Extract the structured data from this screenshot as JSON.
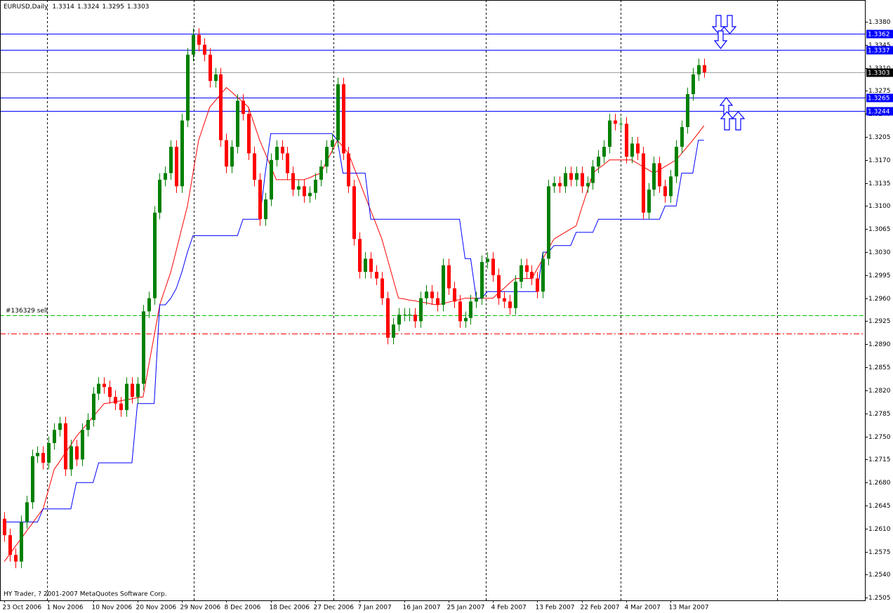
{
  "chart_data": {
    "type": "candlestick",
    "title": "EURUSD,Daily",
    "footer": "HY Trader, ? 2001-2007 MetaQuotes Software Corp.",
    "categories": [
      "23 Oct 2006",
      null,
      null,
      null,
      null,
      null,
      null,
      null,
      "1 Nov 2006",
      null,
      null,
      null,
      null,
      null,
      null,
      null,
      "10 Nov 2006",
      null,
      null,
      null,
      null,
      null,
      null,
      null,
      "20 Nov 2006",
      null,
      null,
      null,
      null,
      null,
      null,
      null,
      "29 Nov 2006",
      null,
      null,
      null,
      null,
      null,
      null,
      null,
      "8 Dec 2006",
      null,
      null,
      null,
      null,
      null,
      null,
      null,
      "18 Dec 2006",
      null,
      null,
      null,
      null,
      null,
      null,
      null,
      "27 Dec 2006",
      null,
      null,
      null,
      null,
      null,
      null,
      null,
      "7 Jan 2007",
      null,
      null,
      null,
      null,
      null,
      null,
      null,
      "16 Jan 2007",
      null,
      null,
      null,
      null,
      null,
      null,
      null,
      "25 Jan 2007",
      null,
      null,
      null,
      null,
      null,
      null,
      null,
      "4 Feb 2007",
      null,
      null,
      null,
      null,
      null,
      null,
      null,
      "13 Feb 2007",
      null,
      null,
      null,
      null,
      null,
      null,
      null,
      "22 Feb 2007",
      null,
      null,
      null,
      null,
      null,
      null,
      null,
      "4 Mar 2007",
      null,
      null,
      null,
      null,
      null,
      null,
      null,
      "13 Mar 2007",
      null,
      null,
      null,
      null,
      null,
      null
    ],
    "open": [
      1.2625,
      1.26,
      1.257,
      1.256,
      1.262,
      1.265,
      1.272,
      1.2725,
      1.271,
      1.274,
      1.276,
      1.277,
      1.27,
      1.2735,
      1.2715,
      1.276,
      1.2775,
      1.2815,
      1.283,
      1.2825,
      1.281,
      1.28,
      1.279,
      1.283,
      1.281,
      1.283,
      1.294,
      1.296,
      1.309,
      1.314,
      1.315,
      1.319,
      1.313,
      1.323,
      1.333,
      1.336,
      1.3345,
      1.333,
      1.329,
      1.33,
      1.32,
      1.316,
      1.319,
      1.326,
      1.324,
      1.318,
      1.314,
      1.308,
      1.311,
      1.317,
      1.319,
      1.318,
      1.315,
      1.3125,
      1.313,
      1.3115,
      1.312,
      1.314,
      1.316,
      1.319,
      1.32,
      1.3285,
      1.318,
      1.313,
      1.305,
      1.3,
      1.302,
      1.3,
      1.299,
      1.296,
      1.29,
      1.292,
      1.2935,
      1.2935,
      1.2935,
      1.2925,
      1.296,
      1.297,
      1.296,
      1.295,
      1.301,
      1.2975,
      1.2955,
      1.2925,
      1.293,
      1.2955,
      1.296,
      1.3015,
      1.302,
      1.2995,
      1.296,
      1.2955,
      1.2945,
      1.2985,
      1.301,
      1.3,
      1.299,
      1.297,
      1.302,
      1.313,
      1.3135,
      1.313,
      1.315,
      1.314,
      1.315,
      1.313,
      1.3135,
      1.316,
      1.3175,
      1.319,
      1.323,
      1.3225,
      1.3225,
      1.3175,
      1.3195,
      1.318,
      1.309,
      1.3125,
      1.3165,
      1.313,
      1.3115,
      1.3145,
      1.319,
      1.322,
      1.327,
      1.33,
      1.3314
    ],
    "high": [
      1.2635,
      1.261,
      1.258,
      1.263,
      1.266,
      1.273,
      1.2735,
      1.2735,
      1.275,
      1.277,
      1.278,
      1.278,
      1.2745,
      1.2745,
      1.277,
      1.2785,
      1.2825,
      1.284,
      1.284,
      1.2835,
      1.282,
      1.281,
      1.284,
      1.284,
      1.284,
      1.295,
      1.297,
      1.31,
      1.315,
      1.316,
      1.32,
      1.32,
      1.324,
      1.334,
      1.337,
      1.337,
      1.3355,
      1.334,
      1.331,
      1.331,
      1.321,
      1.32,
      1.327,
      1.327,
      1.325,
      1.319,
      1.315,
      1.312,
      1.318,
      1.32,
      1.32,
      1.319,
      1.316,
      1.314,
      1.314,
      1.313,
      1.315,
      1.317,
      1.32,
      1.321,
      1.3295,
      1.3295,
      1.319,
      1.314,
      1.306,
      1.303,
      1.303,
      1.301,
      1.3,
      1.297,
      1.293,
      1.2945,
      1.2945,
      1.2945,
      1.2945,
      1.297,
      1.298,
      1.298,
      1.297,
      1.302,
      1.302,
      1.2985,
      1.2965,
      1.294,
      1.2965,
      1.297,
      1.3025,
      1.303,
      1.303,
      1.3005,
      1.297,
      1.2965,
      1.2995,
      1.302,
      1.302,
      1.301,
      1.3,
      1.303,
      1.314,
      1.3145,
      1.3145,
      1.316,
      1.316,
      1.316,
      1.316,
      1.3145,
      1.317,
      1.3185,
      1.32,
      1.324,
      1.324,
      1.3235,
      1.3235,
      1.3205,
      1.3205,
      1.319,
      1.3135,
      1.3175,
      1.3175,
      1.314,
      1.3155,
      1.32,
      1.323,
      1.328,
      1.331,
      1.3324,
      1.3324
    ],
    "low": [
      1.259,
      1.256,
      1.255,
      1.255,
      1.261,
      1.264,
      1.271,
      1.27,
      1.27,
      1.273,
      1.275,
      1.269,
      1.269,
      1.2705,
      1.2705,
      1.275,
      1.2765,
      1.2805,
      1.2815,
      1.28,
      1.279,
      1.278,
      1.278,
      1.28,
      1.28,
      1.282,
      1.293,
      1.295,
      1.308,
      1.313,
      1.314,
      1.312,
      1.312,
      1.322,
      1.332,
      1.3335,
      1.332,
      1.328,
      1.328,
      1.319,
      1.315,
      1.315,
      1.318,
      1.323,
      1.317,
      1.313,
      1.307,
      1.307,
      1.31,
      1.316,
      1.317,
      1.314,
      1.3115,
      1.3115,
      1.3105,
      1.3105,
      1.311,
      1.313,
      1.315,
      1.318,
      1.319,
      1.317,
      1.312,
      1.304,
      1.299,
      1.299,
      1.299,
      1.298,
      1.295,
      1.289,
      1.289,
      1.291,
      1.2925,
      1.2925,
      1.2915,
      1.2915,
      1.295,
      1.295,
      1.294,
      1.294,
      1.2965,
      1.2945,
      1.2915,
      1.2915,
      1.292,
      1.2945,
      1.295,
      1.3005,
      1.2985,
      1.295,
      1.2945,
      1.2935,
      1.2935,
      1.2975,
      1.299,
      1.298,
      1.296,
      1.296,
      1.301,
      1.312,
      1.312,
      1.312,
      1.313,
      1.313,
      1.312,
      1.312,
      1.3125,
      1.315,
      1.3165,
      1.318,
      1.3215,
      1.3215,
      1.3165,
      1.3165,
      1.317,
      1.308,
      1.308,
      1.3115,
      1.312,
      1.3105,
      1.3105,
      1.3135,
      1.318,
      1.321,
      1.326,
      1.329,
      1.3295
    ],
    "close": [
      1.26,
      1.257,
      1.256,
      1.262,
      1.265,
      1.272,
      1.2725,
      1.271,
      1.274,
      1.276,
      1.277,
      1.27,
      1.2735,
      1.2715,
      1.276,
      1.2775,
      1.2815,
      1.283,
      1.2825,
      1.281,
      1.28,
      1.279,
      1.283,
      1.281,
      1.283,
      1.294,
      1.296,
      1.309,
      1.314,
      1.315,
      1.319,
      1.313,
      1.323,
      1.333,
      1.336,
      1.3345,
      1.333,
      1.329,
      1.33,
      1.32,
      1.316,
      1.319,
      1.326,
      1.324,
      1.318,
      1.314,
      1.308,
      1.311,
      1.317,
      1.319,
      1.318,
      1.315,
      1.3125,
      1.313,
      1.3115,
      1.312,
      1.314,
      1.316,
      1.319,
      1.32,
      1.3285,
      1.318,
      1.313,
      1.305,
      1.3,
      1.302,
      1.3,
      1.299,
      1.296,
      1.29,
      1.292,
      1.2935,
      1.2935,
      1.2935,
      1.2925,
      1.296,
      1.297,
      1.296,
      1.295,
      1.301,
      1.2975,
      1.2955,
      1.2925,
      1.293,
      1.2955,
      1.296,
      1.3015,
      1.302,
      1.2995,
      1.296,
      1.2955,
      1.2945,
      1.2985,
      1.301,
      1.3,
      1.299,
      1.297,
      1.302,
      1.313,
      1.3135,
      1.313,
      1.315,
      1.314,
      1.315,
      1.313,
      1.3135,
      1.316,
      1.3175,
      1.319,
      1.323,
      1.3225,
      1.3225,
      1.3175,
      1.3195,
      1.318,
      1.309,
      1.3125,
      1.3165,
      1.313,
      1.3115,
      1.3145,
      1.319,
      1.322,
      1.327,
      1.33,
      1.3314,
      1.3303
    ],
    "up_color": "#008000",
    "down_color": "#ff0000",
    "series": [
      {
        "color": "#ff0000",
        "values": [
          1.256,
          1.2571,
          1.2583,
          1.2594,
          1.2606,
          1.2617,
          1.2629,
          1.264,
          1.267,
          1.27,
          1.2712,
          1.2725,
          1.2737,
          1.275,
          1.276,
          1.277,
          1.278,
          1.279,
          1.28,
          1.2801,
          1.2803,
          1.2804,
          1.2806,
          1.2807,
          1.2809,
          1.281,
          1.2857,
          1.2903,
          1.295,
          1.2975,
          1.3,
          1.3033,
          1.3067,
          1.31,
          1.315,
          1.32,
          1.3225,
          1.325,
          1.326,
          1.327,
          1.328,
          1.3273,
          1.3265,
          1.3258,
          1.325,
          1.3225,
          1.32,
          1.318,
          1.316,
          1.314,
          1.314,
          1.314,
          1.314,
          1.314,
          1.314,
          1.3143,
          1.3147,
          1.315,
          1.3167,
          1.3183,
          1.32,
          1.319,
          1.318,
          1.3158,
          1.3137,
          1.3115,
          1.3093,
          1.3072,
          1.305,
          1.302,
          1.299,
          1.296,
          1.2959,
          1.2957,
          1.2956,
          1.2954,
          1.2953,
          1.2951,
          1.295,
          1.2952,
          1.2954,
          1.2956,
          1.2958,
          1.296,
          1.296,
          1.296,
          1.296,
          1.296,
          1.296,
          1.2968,
          1.2975,
          1.2983,
          1.299,
          1.299,
          1.299,
          1.299,
          1.3005,
          1.302,
          1.3035,
          1.305,
          1.3055,
          1.306,
          1.3065,
          1.307,
          1.3097,
          1.3123,
          1.315,
          1.3157,
          1.3163,
          1.317,
          1.317,
          1.317,
          1.317,
          1.317,
          1.3165,
          1.316,
          1.3155,
          1.315,
          1.3155,
          1.316,
          1.3165,
          1.317,
          1.318,
          1.319,
          1.32,
          1.3211,
          1.3222
        ]
      },
      {
        "color": "#0000ff",
        "values": [
          1.262,
          1.262,
          1.262,
          1.262,
          1.262,
          1.262,
          1.262,
          1.264,
          1.264,
          1.264,
          1.264,
          1.264,
          1.264,
          1.268,
          1.268,
          1.268,
          1.268,
          1.271,
          1.271,
          1.271,
          1.271,
          1.271,
          1.271,
          1.271,
          1.28,
          1.28,
          1.28,
          1.28,
          1.295,
          1.295,
          1.296,
          1.2975,
          1.3,
          1.303,
          1.3055,
          1.3055,
          1.3055,
          1.3055,
          1.3055,
          1.3055,
          1.3055,
          1.3055,
          1.3055,
          1.308,
          1.308,
          1.308,
          1.308,
          1.315,
          1.321,
          1.321,
          1.321,
          1.321,
          1.321,
          1.321,
          1.321,
          1.321,
          1.321,
          1.321,
          1.321,
          1.321,
          1.32,
          1.315,
          1.315,
          1.315,
          1.315,
          1.315,
          1.308,
          1.308,
          1.308,
          1.308,
          1.308,
          1.308,
          1.308,
          1.308,
          1.308,
          1.308,
          1.308,
          1.308,
          1.308,
          1.308,
          1.308,
          1.308,
          1.308,
          1.302,
          1.302,
          1.296,
          1.296,
          1.297,
          1.297,
          1.297,
          1.297,
          1.297,
          1.297,
          1.297,
          1.297,
          1.297,
          1.297,
          1.303,
          1.303,
          1.304,
          1.304,
          1.304,
          1.304,
          1.306,
          1.306,
          1.306,
          1.306,
          1.308,
          1.308,
          1.308,
          1.308,
          1.308,
          1.308,
          1.308,
          1.308,
          1.308,
          1.308,
          1.308,
          1.308,
          1.31,
          1.31,
          1.31,
          1.315,
          1.315,
          1.315,
          1.32,
          1.32
        ]
      }
    ],
    "levels": [
      {
        "value": 1.3362,
        "color": "#0000ff"
      },
      {
        "value": 1.3337,
        "color": "#0000ff"
      },
      {
        "value": 1.3265,
        "color": "#0000ff"
      },
      {
        "value": 1.3244,
        "color": "#0000ff"
      },
      {
        "value": 1.3303,
        "color": "#000000"
      }
    ],
    "orders": [
      {
        "value": 1.2934,
        "color": "#00c000",
        "label": "#136329 sell"
      },
      {
        "value": 1.2906,
        "color": "#ff0000"
      }
    ],
    "ylim": [
      1.2501,
      1.3413
    ],
    "yticks": [
      {
        "value": 1.338,
        "label": "1.3380"
      },
      1.3345,
      {
        "value": 1.331,
        "label": "1.3310"
      },
      1.3275,
      {
        "value": 1.324,
        "label": "1.3240"
      },
      1.3205,
      {
        "value": 1.317,
        "label": "1.3170"
      },
      1.3135,
      {
        "value": 1.31,
        "label": "1.3100"
      },
      1.3065,
      {
        "value": 1.303,
        "label": "1.3030"
      },
      1.2995,
      {
        "value": 1.296,
        "label": "1.2960"
      },
      1.2925,
      {
        "value": 1.289,
        "label": "1.2890"
      },
      1.2855,
      {
        "value": 1.282,
        "label": "1.2820"
      },
      1.2785,
      {
        "value": 1.275,
        "label": "1.2750"
      },
      1.2715,
      {
        "value": 1.268,
        "label": "1.2680"
      },
      1.2645,
      {
        "value": 1.261,
        "label": "1.2610"
      },
      1.2575,
      {
        "value": 1.254,
        "label": "1.2540"
      },
      1.2505
    ]
  }
}
